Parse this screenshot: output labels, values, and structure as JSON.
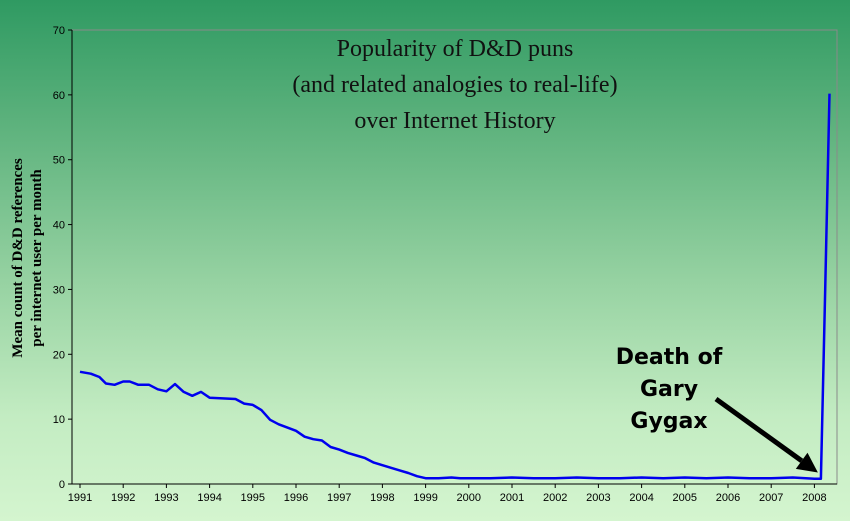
{
  "chart_data": {
    "type": "line",
    "title_lines": [
      "Popularity of D&D puns",
      "(and related analogies to real-life)",
      "over Internet History"
    ],
    "xlabel": "",
    "ylabel_lines": [
      "Mean count of D&D references",
      "per internet user per month"
    ],
    "xlim": [
      1991,
      2008.5
    ],
    "ylim": [
      0,
      70
    ],
    "x_ticks": [
      "1991",
      "1992",
      "1993",
      "1994",
      "1995",
      "1996",
      "1997",
      "1998",
      "1999",
      "2000",
      "2001",
      "2002",
      "2003",
      "2004",
      "2005",
      "2006",
      "2007",
      "2008"
    ],
    "y_ticks": [
      "0",
      "10",
      "20",
      "30",
      "40",
      "50",
      "60",
      "70"
    ],
    "grid": false,
    "legend": "none",
    "line_color": "#0000ee",
    "series": [
      {
        "x": [
          1991.0,
          1991.25,
          1991.45,
          1991.6,
          1991.8,
          1992.0,
          1992.15,
          1992.35,
          1992.6,
          1992.8,
          1993.0,
          1993.2,
          1993.4,
          1993.6,
          1993.8,
          1994.0,
          1994.3,
          1994.6,
          1994.8,
          1995.0,
          1995.2,
          1995.4,
          1995.6,
          1995.8,
          1996.0,
          1996.2,
          1996.4,
          1996.6,
          1996.8,
          1997.0,
          1997.2,
          1997.4,
          1997.6,
          1997.8,
          1998.0,
          1998.2,
          1998.4,
          1998.6,
          1998.8,
          1999.0,
          1999.3,
          1999.6,
          1999.8,
          2000.0,
          2000.5,
          2001.0,
          2001.5,
          2002.0,
          2002.5,
          2003.0,
          2003.5,
          2004.0,
          2004.5,
          2005.0,
          2005.5,
          2006.0,
          2006.5,
          2007.0,
          2007.5,
          2007.8,
          2008.0,
          2008.15,
          2008.25,
          2008.35
        ],
        "y": [
          17.3,
          17.0,
          16.5,
          15.5,
          15.3,
          15.8,
          15.8,
          15.3,
          15.3,
          14.6,
          14.3,
          15.4,
          14.2,
          13.6,
          14.2,
          13.3,
          13.2,
          13.1,
          12.4,
          12.2,
          11.4,
          9.9,
          9.2,
          8.7,
          8.2,
          7.3,
          6.9,
          6.7,
          5.7,
          5.3,
          4.8,
          4.4,
          4.0,
          3.3,
          2.9,
          2.5,
          2.1,
          1.7,
          1.2,
          0.9,
          0.9,
          1.0,
          0.9,
          0.9,
          0.9,
          1.0,
          0.9,
          0.9,
          1.0,
          0.9,
          0.9,
          1.0,
          0.9,
          1.0,
          0.9,
          1.0,
          0.9,
          0.9,
          1.0,
          0.9,
          0.8,
          0.8,
          30.0,
          60.2
        ]
      }
    ],
    "annotation": {
      "lines": [
        "Death of",
        "Gary",
        "Gygax"
      ],
      "points_to_x": 2008.15,
      "points_to_y": 1.0
    }
  }
}
